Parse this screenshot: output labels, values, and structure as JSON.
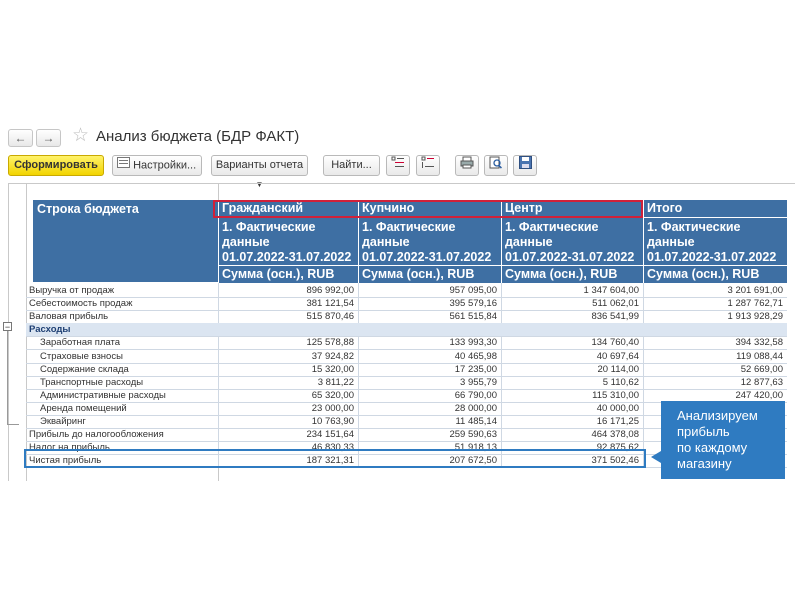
{
  "window": {
    "title": "Анализ бюджета (БДР ФАКТ)",
    "back_icon": "arrow-left-icon",
    "forward_icon": "arrow-right-icon",
    "favorite_icon": "star-icon"
  },
  "toolbar": {
    "generate_label": "Сформировать",
    "settings_label": "Настройки...",
    "variants_label": "Варианты отчета",
    "find_label": "Найти...",
    "icons": [
      "expand-all-icon",
      "collapse-all-icon",
      "print-icon",
      "preview-icon",
      "save-icon"
    ]
  },
  "report": {
    "row_header": "Строка бюджета",
    "columns": [
      {
        "name": "Гражданский",
        "period_line1": "1. Фактические",
        "period_line2": "данные",
        "period_line3": "01.07.2022-31.07.2022",
        "measure": "Сумма (осн.), RUB"
      },
      {
        "name": "Купчино",
        "period_line1": "1. Фактические",
        "period_line2": "данные",
        "period_line3": "01.07.2022-31.07.2022",
        "measure": "Сумма (осн.), RUB"
      },
      {
        "name": "Центр",
        "period_line1": "1. Фактические",
        "period_line2": "данные",
        "period_line3": "01.07.2022-31.07.2022",
        "measure": "Сумма (осн.), RUB"
      },
      {
        "name": "Итого",
        "period_line1": "1. Фактические",
        "period_line2": "данные",
        "period_line3": "01.07.2022-31.07.2022",
        "measure": "Сумма (осн.), RUB"
      }
    ],
    "rows": [
      {
        "label": "Выручка от продаж",
        "values": [
          "896 992,00",
          "957 095,00",
          "1 347 604,00",
          "3 201 691,00"
        ]
      },
      {
        "label": "Себестоимость продаж",
        "values": [
          "381 121,54",
          "395 579,16",
          "511 062,01",
          "1 287 762,71"
        ]
      },
      {
        "label": "Валовая прибыль",
        "values": [
          "515 870,46",
          "561 515,84",
          "836 541,99",
          "1 913 928,29"
        ]
      },
      {
        "label": "Расходы",
        "values": [
          "",
          "",
          "",
          ""
        ]
      },
      {
        "label": "Заработная плата",
        "values": [
          "125 578,88",
          "133 993,30",
          "134 760,40",
          "394 332,58"
        ]
      },
      {
        "label": "Страховые взносы",
        "values": [
          "37 924,82",
          "40 465,98",
          "40 697,64",
          "119 088,44"
        ]
      },
      {
        "label": "Содержание склада",
        "values": [
          "15 320,00",
          "17 235,00",
          "20 114,00",
          "52 669,00"
        ]
      },
      {
        "label": "Транспортные расходы",
        "values": [
          "3 811,22",
          "3 955,79",
          "5 110,62",
          "12 877,63"
        ]
      },
      {
        "label": "Административные расходы",
        "values": [
          "65 320,00",
          "66 790,00",
          "115 310,00",
          "247 420,00"
        ]
      },
      {
        "label": "Аренда помещений",
        "values": [
          "23 000,00",
          "28 000,00",
          "40 000,00",
          ""
        ]
      },
      {
        "label": "Эквайринг",
        "values": [
          "10 763,90",
          "11 485,14",
          "16 171,25",
          ""
        ]
      },
      {
        "label": "Прибыль до налогообложения",
        "values": [
          "234 151,64",
          "259 590,63",
          "464 378,08",
          ""
        ]
      },
      {
        "label": "Налог на прибыль",
        "values": [
          "46 830,33",
          "51 918,13",
          "92 875,62",
          ""
        ]
      },
      {
        "label": "Чистая прибыль",
        "values": [
          "187 321,31",
          "207 672,50",
          "371 502,46",
          ""
        ]
      }
    ],
    "collapse_symbol": "−"
  },
  "callout": {
    "line1": "Анализируем",
    "line2": "прибыль",
    "line3": "по каждому",
    "line4": "магазину"
  },
  "colors": {
    "header_bg": "#3e6fa3",
    "group_bg": "#dbe5f1",
    "highlight_red": "#d0213a",
    "highlight_blue": "#2f7bc1",
    "primary_button": "#f2d400"
  }
}
